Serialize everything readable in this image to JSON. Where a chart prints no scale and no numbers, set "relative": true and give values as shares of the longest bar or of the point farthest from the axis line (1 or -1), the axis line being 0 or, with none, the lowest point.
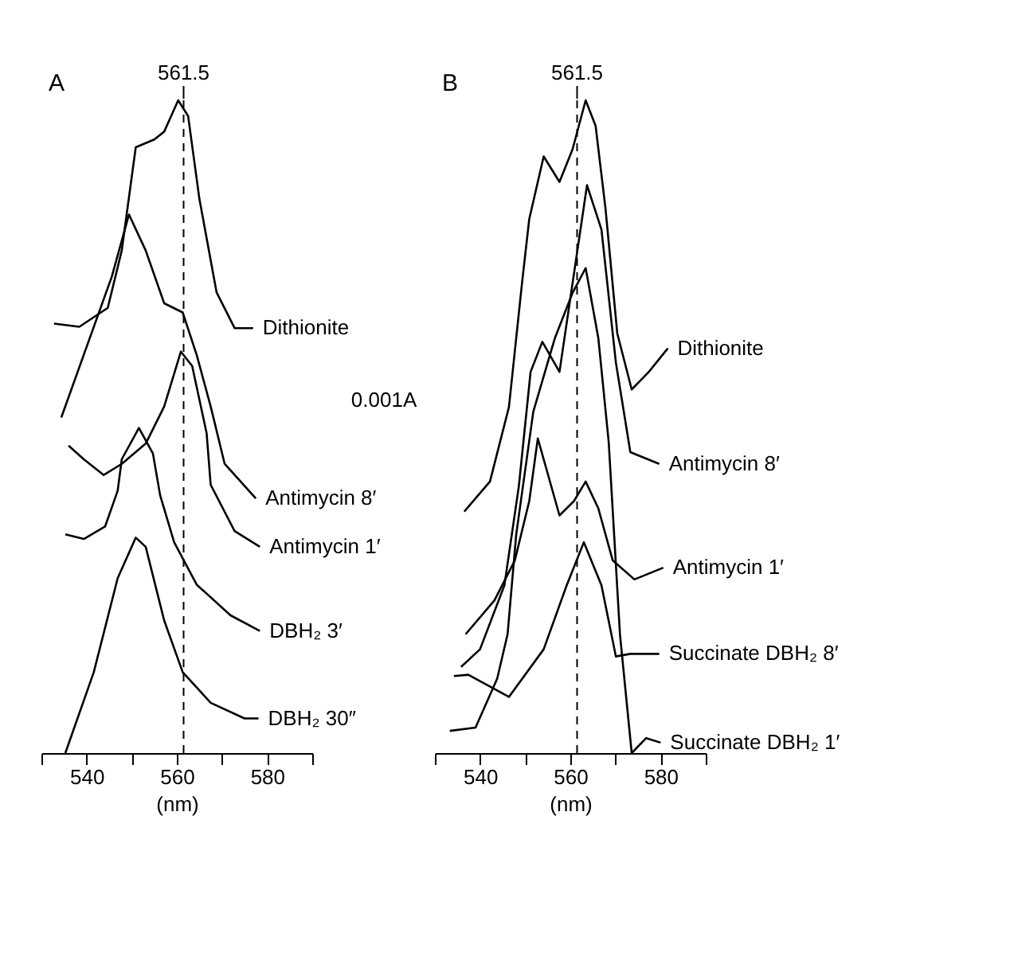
{
  "chart_data": [
    {
      "type": "line",
      "title": "A",
      "xlabel": "(nm)",
      "relative": true,
      "tick_labels": "x",
      "grid": false,
      "marker": "none",
      "line_style": "solid",
      "xlim": [
        530,
        590
      ],
      "xticks": [
        {
          "value": 530,
          "label": null
        },
        540,
        {
          "value": 550,
          "label": null
        },
        560,
        {
          "value": 570,
          "label": null
        },
        580,
        {
          "value": 590,
          "label": null
        }
      ],
      "ref_lines": [
        {
          "axis": "x",
          "value": 561.5,
          "label": "561.5",
          "line_style": "dashed",
          "color": "#000000"
        }
      ],
      "annotations": [
        "0.001A"
      ],
      "series": [
        {
          "name": "Dithionite",
          "color": "#000000",
          "x": [
            532.8,
            538.4,
            544.7,
            547.8,
            550.9,
            555.0,
            557.2,
            560.3,
            562.5,
            565.0,
            568.8,
            572.8,
            576.9
          ],
          "values": [
            0.658,
            0.653,
            0.682,
            0.77,
            0.928,
            0.94,
            0.952,
            1.0,
            0.976,
            0.849,
            0.706,
            0.651,
            0.651
          ]
        },
        {
          "name": "Antimycin 8′",
          "color": "#000000",
          "x": [
            534.4,
            545.6,
            549.4,
            553.1,
            557.2,
            561.3,
            564.4,
            567.5,
            570.6,
            577.5
          ],
          "values": [
            0.514,
            0.73,
            0.825,
            0.77,
            0.689,
            0.675,
            0.61,
            0.531,
            0.443,
            0.39
          ]
        },
        {
          "name": "Antimycin 1′",
          "color": "#000000",
          "x": [
            536.0,
            539.4,
            543.8,
            547.8,
            553.1,
            557.2,
            560.9,
            563.4,
            566.6,
            567.5,
            572.8,
            578.4
          ],
          "values": [
            0.471,
            0.45,
            0.426,
            0.443,
            0.474,
            0.531,
            0.615,
            0.593,
            0.49,
            0.411,
            0.34,
            0.316
          ]
        },
        {
          "name": "DBH₂ 3′",
          "color": "#000000",
          "x": [
            535.3,
            539.4,
            544.1,
            546.9,
            547.8,
            551.6,
            554.7,
            556.3,
            559.4,
            564.4,
            571.9,
            578.4
          ],
          "values": [
            0.335,
            0.328,
            0.347,
            0.402,
            0.45,
            0.498,
            0.459,
            0.395,
            0.323,
            0.258,
            0.211,
            0.187
          ]
        },
        {
          "name": "DBH₂ 30″",
          "color": "#000000",
          "x": [
            535.3,
            541.6,
            546.9,
            550.9,
            553.1,
            557.2,
            561.3,
            567.5,
            575.0,
            578.1
          ],
          "values": [
            0.0,
            0.124,
            0.268,
            0.33,
            0.316,
            0.203,
            0.124,
            0.077,
            0.053,
            0.053
          ]
        }
      ]
    },
    {
      "type": "line",
      "title": "B",
      "xlabel": "(nm)",
      "relative": true,
      "tick_labels": "x",
      "grid": false,
      "marker": "none",
      "line_style": "solid",
      "xlim": [
        530,
        590
      ],
      "xticks": [
        {
          "value": 530,
          "label": null
        },
        540,
        {
          "value": 550,
          "label": null
        },
        560,
        {
          "value": 570,
          "label": null
        },
        580,
        {
          "value": 590,
          "label": null
        }
      ],
      "ref_lines": [
        {
          "axis": "x",
          "value": 561.5,
          "label": "561.5",
          "line_style": "dashed",
          "color": "#000000"
        }
      ],
      "series": [
        {
          "name": "Dithionite",
          "color": "#000000",
          "x": [
            536.5,
            542.2,
            546.4,
            549.3,
            550.9,
            554.1,
            557.6,
            560.5,
            563.4,
            565.6,
            567.8,
            570.4,
            573.6,
            577.4,
            581.6
          ],
          "values": [
            0.37,
            0.416,
            0.53,
            0.72,
            0.818,
            0.914,
            0.875,
            0.925,
            1.0,
            0.961,
            0.834,
            0.643,
            0.557,
            0.584,
            0.62
          ]
        },
        {
          "name": "Antimycin 8′",
          "color": "#000000",
          "x": [
            535.8,
            540.0,
            545.4,
            548.6,
            551.2,
            553.8,
            557.6,
            560.5,
            563.7,
            566.9,
            570.1,
            573.3,
            579.7
          ],
          "values": [
            0.132,
            0.159,
            0.257,
            0.409,
            0.584,
            0.63,
            0.584,
            0.72,
            0.87,
            0.802,
            0.598,
            0.461,
            0.443
          ]
        },
        {
          "name": "Antimycin 1′",
          "color": "#000000",
          "x": [
            536.8,
            543.2,
            547.7,
            550.9,
            552.8,
            557.6,
            560.8,
            563.4,
            566.2,
            569.4,
            574.2,
            580.6
          ],
          "values": [
            0.182,
            0.234,
            0.295,
            0.386,
            0.482,
            0.364,
            0.386,
            0.416,
            0.375,
            0.295,
            0.266,
            0.284
          ]
        },
        {
          "name": "Succinate DBH₂ 8′",
          "color": "#000000",
          "x": [
            534.2,
            537.4,
            546.4,
            554.1,
            559.2,
            563.0,
            566.9,
            570.1,
            573.3,
            579.7
          ],
          "values": [
            0.118,
            0.12,
            0.086,
            0.159,
            0.257,
            0.323,
            0.257,
            0.148,
            0.152,
            0.152
          ]
        },
        {
          "name": "Succinate DBH₂ 1′",
          "color": "#000000",
          "x": [
            533.3,
            539.0,
            543.8,
            546.1,
            548.0,
            551.8,
            556.6,
            560.5,
            563.4,
            566.2,
            568.5,
            571.0,
            573.6,
            576.8,
            580.0
          ],
          "values": [
            0.034,
            0.039,
            0.114,
            0.182,
            0.334,
            0.523,
            0.636,
            0.705,
            0.743,
            0.636,
            0.477,
            0.182,
            0.0,
            0.023,
            0.016
          ]
        }
      ]
    }
  ]
}
